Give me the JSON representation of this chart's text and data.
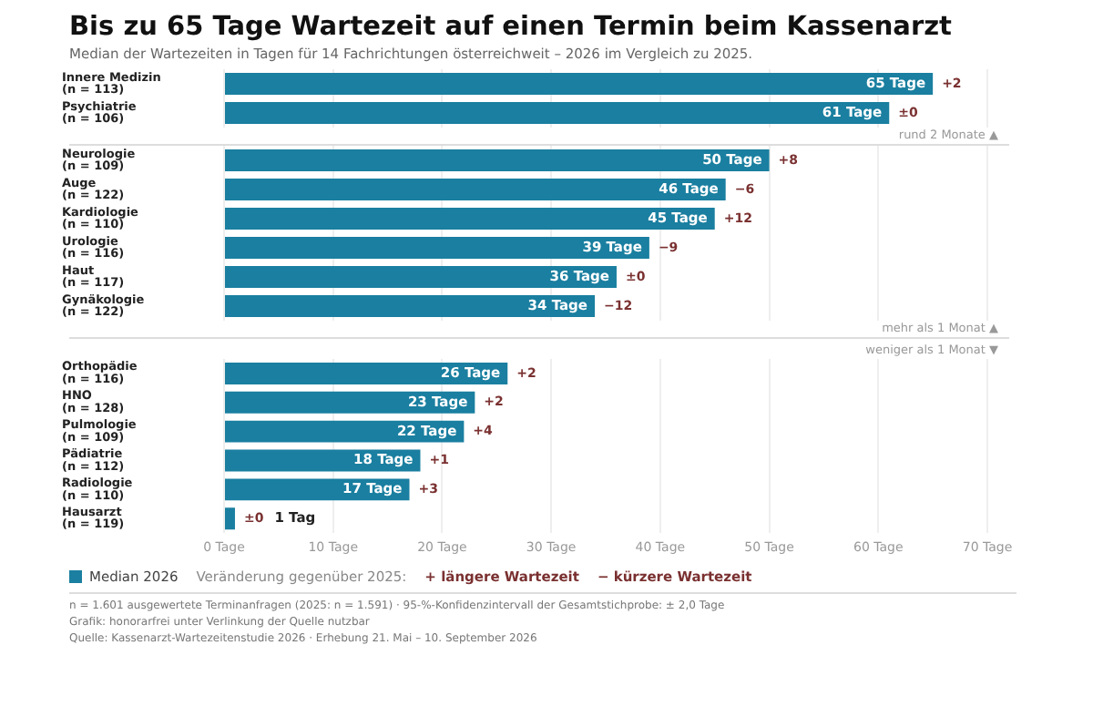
{
  "chart_data": [
    {
      "type": "bar",
      "orientation": "horizontal",
      "title": "Bis zu 65 Tage Wartezeit auf einen Termin beim Kassenarzt",
      "subtitle": "Median der Wartezeiten in Tagen für 14 Fachrichtungen österreichweit – 2026 im Vergleich zu 2025.",
      "categories": [
        "Innere Medizin\n(n = 113)",
        "Psychiatrie\n(n = 106)"
      ],
      "series": [
        {
          "color": "#1a7fa0",
          "values": [
            65,
            61
          ],
          "value_labels": [
            "65 Tage",
            "61 Tage"
          ]
        }
      ],
      "xlim": [
        0,
        70
      ],
      "xticks": [
        0,
        10,
        20,
        30,
        40,
        50,
        60,
        70
      ],
      "tick_labels": "y",
      "grid": "x",
      "annotations": [
        {
          "text": "+2",
          "x": 65,
          "y": "Innere Medizin\n(n = 113)"
        },
        {
          "text": "±0",
          "x": 61,
          "y": "Psychiatrie\n(n = 106)"
        },
        "rund 2 Monate ▲"
      ]
    },
    {
      "type": "bar",
      "orientation": "horizontal",
      "categories": [
        "Neurologie\n(n = 109)",
        "Auge\n(n = 122)",
        "Kardiologie\n(n = 110)",
        "Urologie\n(n = 116)",
        "Haut\n(n = 117)",
        "Gynäkologie\n(n = 122)"
      ],
      "series": [
        {
          "color": "#1a7fa0",
          "values": [
            50,
            46,
            45,
            39,
            36,
            34
          ],
          "value_labels": [
            "50 Tage",
            "46 Tage",
            "45 Tage",
            "39 Tage",
            "36 Tage",
            "34 Tage"
          ]
        }
      ],
      "xlim": [
        0,
        70
      ],
      "xticks": [
        0,
        10,
        20,
        30,
        40,
        50,
        60,
        70
      ],
      "tick_labels": "y",
      "grid": "x",
      "annotations": [
        {
          "text": "+8",
          "x": 50,
          "y": "Neurologie\n(n = 109)"
        },
        {
          "text": "−6",
          "x": 46,
          "y": "Auge\n(n = 122)"
        },
        {
          "text": "+12",
          "x": 45,
          "y": "Kardiologie\n(n = 110)"
        },
        {
          "text": "−9",
          "x": 39,
          "y": "Urologie\n(n = 116)"
        },
        {
          "text": "±0",
          "x": 36,
          "y": "Haut\n(n = 117)"
        },
        {
          "text": "−12",
          "x": 34,
          "y": "Gynäkologie\n(n = 122)"
        },
        "mehr als 1 Monat ▲"
      ]
    },
    {
      "type": "bar",
      "orientation": "horizontal",
      "title": "weniger als 1 Monat ▼",
      "categories": [
        "Orthopädie\n(n = 116)",
        "HNO\n(n = 128)",
        "Pulmologie\n(n = 109)",
        "Pädiatrie\n(n = 112)",
        "Radiologie\n(n = 110)",
        "Hausarzt\n(n = 119)"
      ],
      "series": [
        {
          "name": "Median 2026",
          "color": "#1a7fa0",
          "values": [
            26,
            23,
            22,
            18,
            17,
            1
          ],
          "value_labels": [
            "26 Tage",
            "23 Tage",
            "22 Tage",
            "18 Tage",
            "17 Tage",
            "1 Tag"
          ]
        }
      ],
      "xlim": [
        0,
        70
      ],
      "xticks": [
        {
          "value": 0,
          "label": "0 Tage"
        },
        {
          "value": 10,
          "label": "10 Tage"
        },
        {
          "value": 20,
          "label": "20 Tage"
        },
        {
          "value": 30,
          "label": "30 Tage"
        },
        {
          "value": 40,
          "label": "40 Tage"
        },
        {
          "value": 50,
          "label": "50 Tage"
        },
        {
          "value": 60,
          "label": "60 Tage"
        },
        {
          "value": 70,
          "label": "70 Tage"
        }
      ],
      "grid": "x",
      "legend": "bottom",
      "legend_title": "Veränderung gegenüber 2025:",
      "annotations": [
        {
          "text": "+2",
          "x": 26,
          "y": "Orthopädie\n(n = 116)"
        },
        {
          "text": "+2",
          "x": 23,
          "y": "HNO\n(n = 128)"
        },
        {
          "text": "+4",
          "x": 22,
          "y": "Pulmologie\n(n = 109)"
        },
        {
          "text": "+1",
          "x": 18,
          "y": "Pädiatrie\n(n = 112)"
        },
        {
          "text": "+3",
          "x": 17,
          "y": "Radiologie\n(n = 110)"
        },
        {
          "text": "±0",
          "x": 1,
          "y": "Hausarzt\n(n = 119)"
        },
        "+ längere Wartezeit",
        "− kürzere Wartezeit",
        "n = 1.601 ausgewertete Terminanfragen (2025: n = 1.591) · 95-%-Konfidenzintervall der Gesamtstichprobe: ± 2,0 Tage",
        "Grafik: honorarfrei unter Verlinkung der Quelle nutzbar",
        "Quelle: Kassenarzt-Wartezeitenstudie 2026 · Erhebung 21. Mai – 10. September 2026"
      ]
    }
  ]
}
